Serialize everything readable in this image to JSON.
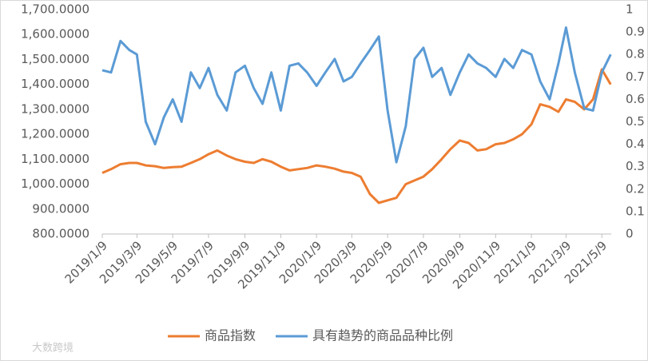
{
  "chart_data": {
    "type": "line",
    "x": [
      "2019/1/9",
      "2019/1/24",
      "2019/2/9",
      "2019/2/24",
      "2019/3/9",
      "2019/3/24",
      "2019/4/9",
      "2019/4/24",
      "2019/5/9",
      "2019/5/24",
      "2019/6/9",
      "2019/6/24",
      "2019/7/9",
      "2019/7/24",
      "2019/8/9",
      "2019/8/24",
      "2019/9/9",
      "2019/9/24",
      "2019/10/9",
      "2019/10/24",
      "2019/11/9",
      "2019/11/24",
      "2019/12/9",
      "2019/12/24",
      "2020/1/9",
      "2020/1/24",
      "2020/2/9",
      "2020/2/24",
      "2020/3/9",
      "2020/3/24",
      "2020/4/9",
      "2020/4/24",
      "2020/5/9",
      "2020/5/24",
      "2020/6/9",
      "2020/6/24",
      "2020/7/9",
      "2020/7/24",
      "2020/8/9",
      "2020/8/24",
      "2020/9/9",
      "2020/9/24",
      "2020/10/9",
      "2020/10/24",
      "2020/11/9",
      "2020/11/24",
      "2020/12/9",
      "2020/12/24",
      "2021/1/9",
      "2021/1/24",
      "2021/2/9",
      "2021/2/24",
      "2021/3/9",
      "2021/3/24",
      "2021/4/9",
      "2021/4/24",
      "2021/5/9",
      "2021/5/24"
    ],
    "series": [
      {
        "name": "商品指数",
        "color": "#ED7D31",
        "axis": "y",
        "values": [
          1045,
          1060,
          1080,
          1085,
          1085,
          1075,
          1072,
          1065,
          1068,
          1070,
          1085,
          1100,
          1120,
          1135,
          1115,
          1100,
          1090,
          1085,
          1100,
          1090,
          1070,
          1055,
          1060,
          1065,
          1075,
          1070,
          1062,
          1050,
          1045,
          1030,
          960,
          925,
          935,
          945,
          1000,
          1015,
          1030,
          1060,
          1100,
          1140,
          1175,
          1165,
          1135,
          1140,
          1160,
          1165,
          1180,
          1200,
          1240,
          1320,
          1310,
          1290,
          1340,
          1330,
          1300,
          1340,
          1460,
          1400
        ]
      },
      {
        "name": "具有趋势的商品品种比例",
        "color": "#5B9BD5",
        "axis": "y2",
        "values": [
          0.73,
          0.72,
          0.86,
          0.82,
          0.8,
          0.5,
          0.4,
          0.52,
          0.6,
          0.5,
          0.72,
          0.65,
          0.74,
          0.62,
          0.55,
          0.72,
          0.75,
          0.65,
          0.58,
          0.72,
          0.55,
          0.75,
          0.76,
          0.72,
          0.66,
          0.72,
          0.78,
          0.68,
          0.7,
          0.76,
          0.82,
          0.88,
          0.55,
          0.32,
          0.48,
          0.78,
          0.83,
          0.7,
          0.74,
          0.62,
          0.72,
          0.8,
          0.76,
          0.74,
          0.7,
          0.78,
          0.74,
          0.82,
          0.8,
          0.68,
          0.6,
          0.76,
          0.92,
          0.72,
          0.56,
          0.55,
          0.72,
          0.8
        ]
      }
    ],
    "xlim": [
      "2019/1/9",
      "2021/5/25"
    ],
    "xticks": [
      "2019/1/9",
      "2019/3/9",
      "2019/5/9",
      "2019/7/9",
      "2019/9/9",
      "2019/11/9",
      "2020/1/9",
      "2020/3/9",
      "2020/5/9",
      "2020/7/9",
      "2020/9/9",
      "2020/11/9",
      "2021/1/9",
      "2021/3/9",
      "2021/5/9"
    ],
    "ylim": [
      800,
      1700
    ],
    "yticks": [
      {
        "value": 800,
        "label": "800.0000"
      },
      {
        "value": 900,
        "label": "900.0000"
      },
      {
        "value": 1000,
        "label": "1,000.0000"
      },
      {
        "value": 1100,
        "label": "1,100.0000"
      },
      {
        "value": 1200,
        "label": "1,200.0000"
      },
      {
        "value": 1300,
        "label": "1,300.0000"
      },
      {
        "value": 1400,
        "label": "1,400.0000"
      },
      {
        "value": 1500,
        "label": "1,500.0000"
      },
      {
        "value": 1600,
        "label": "1,600.0000"
      },
      {
        "value": 1700,
        "label": "1,700.0000"
      }
    ],
    "y2lim": [
      0,
      1
    ],
    "y2ticks": [
      0,
      0.1,
      0.2,
      0.3,
      0.4,
      0.5,
      0.6,
      0.7,
      0.8,
      0.9,
      1
    ],
    "legend": "bottom",
    "watermark": "大数跨境"
  }
}
